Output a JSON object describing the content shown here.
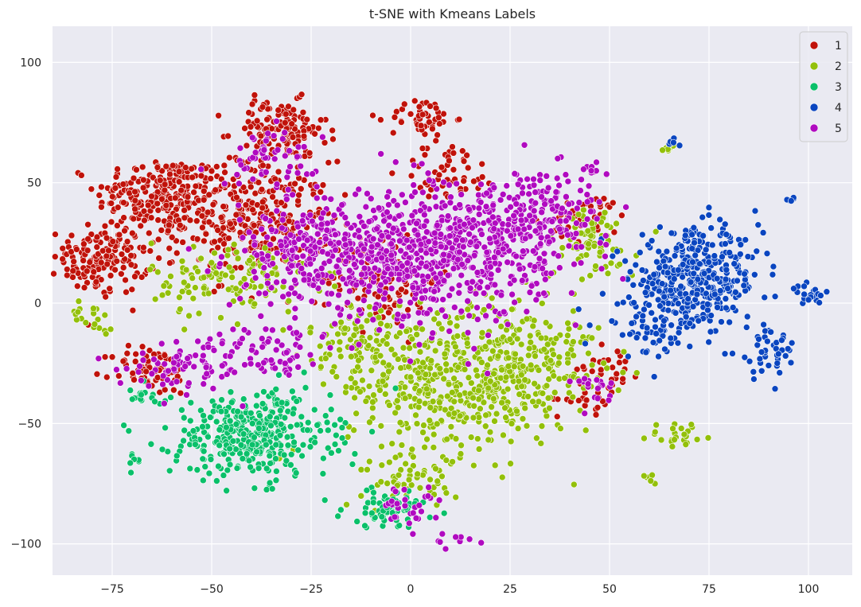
{
  "chart_data": {
    "type": "scatter",
    "title": "t-SNE with Kmeans Labels",
    "xlabel": "",
    "ylabel": "",
    "xlim": [
      -90,
      111
    ],
    "ylim": [
      -113,
      115
    ],
    "x_ticks": [
      -75,
      -50,
      -25,
      0,
      25,
      50,
      75,
      100
    ],
    "x_tick_labels": [
      "−75",
      "−50",
      "−25",
      "0",
      "25",
      "50",
      "75",
      "100"
    ],
    "y_ticks": [
      -100,
      -50,
      0,
      50,
      100
    ],
    "y_tick_labels": [
      "−100",
      "−50",
      "0",
      "50",
      "100"
    ],
    "grid": true,
    "legend_position": "top-right",
    "background_color": "#eaeaf2",
    "series": [
      {
        "name": "1",
        "color": "#c0120a",
        "clusters": [
          {
            "cx": -63,
            "cy": 45,
            "sx": 8,
            "sy": 8,
            "n": 220
          },
          {
            "cx": -40,
            "cy": 35,
            "sx": 10,
            "sy": 12,
            "n": 320
          },
          {
            "cx": -78,
            "cy": 18,
            "sx": 6,
            "sy": 7,
            "n": 160
          },
          {
            "cx": -33,
            "cy": 72,
            "sx": 6,
            "sy": 6,
            "n": 130
          },
          {
            "cx": -7,
            "cy": 10,
            "sx": 7,
            "sy": 10,
            "n": 100
          },
          {
            "cx": 3,
            "cy": 77,
            "sx": 4,
            "sy": 4,
            "n": 50
          },
          {
            "cx": -65,
            "cy": -28,
            "sx": 5,
            "sy": 5,
            "n": 70
          },
          {
            "cx": 10,
            "cy": 55,
            "sx": 6,
            "sy": 6,
            "n": 50
          },
          {
            "cx": 45,
            "cy": 35,
            "sx": 5,
            "sy": 5,
            "n": 40
          },
          {
            "cx": 50,
            "cy": -25,
            "sx": 4,
            "sy": 5,
            "n": 25
          },
          {
            "cx": 45,
            "cy": -40,
            "sx": 4,
            "sy": 3,
            "n": 20
          }
        ]
      },
      {
        "name": "2",
        "color": "#93c00a",
        "clusters": [
          {
            "cx": 12,
            "cy": -35,
            "sx": 14,
            "sy": 14,
            "n": 450
          },
          {
            "cx": 28,
            "cy": -20,
            "sx": 10,
            "sy": 10,
            "n": 160
          },
          {
            "cx": -45,
            "cy": 10,
            "sx": 10,
            "sy": 8,
            "n": 130
          },
          {
            "cx": -10,
            "cy": -15,
            "sx": 8,
            "sy": 8,
            "n": 110
          },
          {
            "cx": 45,
            "cy": 25,
            "sx": 6,
            "sy": 8,
            "n": 70
          },
          {
            "cx": 0,
            "cy": -75,
            "sx": 6,
            "sy": 5,
            "n": 50
          },
          {
            "cx": -80,
            "cy": -5,
            "sx": 3,
            "sy": 3,
            "n": 20
          },
          {
            "cx": 68,
            "cy": -55,
            "sx": 4,
            "sy": 3,
            "n": 25
          },
          {
            "cx": 65,
            "cy": 65,
            "sx": 1.5,
            "sy": 1.5,
            "n": 8
          },
          {
            "cx": 60,
            "cy": -72,
            "sx": 1.5,
            "sy": 1.5,
            "n": 6
          }
        ]
      },
      {
        "name": "3",
        "color": "#0ac06a",
        "clusters": [
          {
            "cx": -40,
            "cy": -55,
            "sx": 10,
            "sy": 9,
            "n": 380
          },
          {
            "cx": -5,
            "cy": -85,
            "sx": 6,
            "sy": 4,
            "n": 70
          },
          {
            "cx": -68,
            "cy": -40,
            "sx": 3,
            "sy": 3,
            "n": 15
          },
          {
            "cx": -70,
            "cy": -65,
            "sx": 1.5,
            "sy": 1.5,
            "n": 6
          }
        ]
      },
      {
        "name": "4",
        "color": "#0a45c0",
        "clusters": [
          {
            "cx": 72,
            "cy": 10,
            "sx": 8,
            "sy": 10,
            "n": 400
          },
          {
            "cx": 60,
            "cy": -10,
            "sx": 6,
            "sy": 6,
            "n": 60
          },
          {
            "cx": 90,
            "cy": -20,
            "sx": 4,
            "sy": 6,
            "n": 40
          },
          {
            "cx": 100,
            "cy": 3,
            "sx": 2,
            "sy": 2,
            "n": 20
          },
          {
            "cx": 96,
            "cy": 43,
            "sx": 0.8,
            "sy": 0.8,
            "n": 5
          },
          {
            "cx": 65,
            "cy": 66,
            "sx": 1,
            "sy": 1,
            "n": 5
          }
        ]
      },
      {
        "name": "5",
        "color": "#b00ac0",
        "clusters": [
          {
            "cx": 5,
            "cy": 20,
            "sx": 14,
            "sy": 14,
            "n": 650
          },
          {
            "cx": -25,
            "cy": 20,
            "sx": 10,
            "sy": 10,
            "n": 230
          },
          {
            "cx": 30,
            "cy": 35,
            "sx": 10,
            "sy": 10,
            "n": 220
          },
          {
            "cx": -55,
            "cy": -25,
            "sx": 8,
            "sy": 6,
            "n": 80
          },
          {
            "cx": -35,
            "cy": 60,
            "sx": 6,
            "sy": 6,
            "n": 60
          },
          {
            "cx": 0,
            "cy": -85,
            "sx": 4,
            "sy": 4,
            "n": 30
          },
          {
            "cx": -35,
            "cy": -20,
            "sx": 6,
            "sy": 6,
            "n": 60
          },
          {
            "cx": 45,
            "cy": -35,
            "sx": 3,
            "sy": 4,
            "n": 20
          },
          {
            "cx": 45,
            "cy": 55,
            "sx": 2,
            "sy": 2,
            "n": 10
          },
          {
            "cx": 12,
            "cy": -98,
            "sx": 3,
            "sy": 2,
            "n": 8
          }
        ]
      }
    ]
  }
}
